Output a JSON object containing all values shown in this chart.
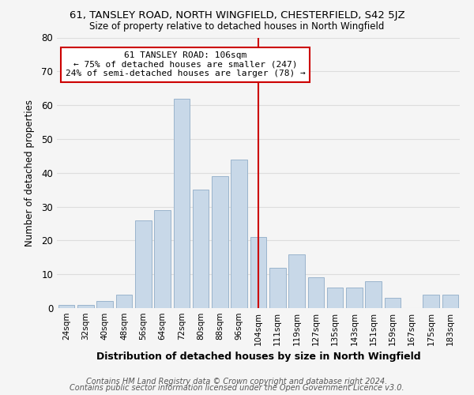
{
  "title": "61, TANSLEY ROAD, NORTH WINGFIELD, CHESTERFIELD, S42 5JZ",
  "subtitle": "Size of property relative to detached houses in North Wingfield",
  "xlabel": "Distribution of detached houses by size in North Wingfield",
  "ylabel": "Number of detached properties",
  "bar_color": "#c8d8e8",
  "bar_edge_color": "#9ab4cc",
  "categories": [
    "24sqm",
    "32sqm",
    "40sqm",
    "48sqm",
    "56sqm",
    "64sqm",
    "72sqm",
    "80sqm",
    "88sqm",
    "96sqm",
    "104sqm",
    "111sqm",
    "119sqm",
    "127sqm",
    "135sqm",
    "143sqm",
    "151sqm",
    "159sqm",
    "167sqm",
    "175sqm",
    "183sqm"
  ],
  "values": [
    1,
    1,
    2,
    4,
    26,
    29,
    62,
    35,
    39,
    44,
    21,
    12,
    16,
    9,
    6,
    6,
    8,
    3,
    0,
    4,
    4
  ],
  "vline_x_index": 10,
  "vline_color": "#cc0000",
  "annotation_title": "61 TANSLEY ROAD: 106sqm",
  "annotation_line1": "← 75% of detached houses are smaller (247)",
  "annotation_line2": "24% of semi-detached houses are larger (78) →",
  "annotation_box_color": "#ffffff",
  "annotation_box_edge": "#cc0000",
  "footer_line1": "Contains HM Land Registry data © Crown copyright and database right 2024.",
  "footer_line2": "Contains public sector information licensed under the Open Government Licence v3.0.",
  "ylim": [
    0,
    80
  ],
  "yticks": [
    0,
    10,
    20,
    30,
    40,
    50,
    60,
    70,
    80
  ],
  "grid_color": "#dddddd",
  "background_color": "#f5f5f5"
}
